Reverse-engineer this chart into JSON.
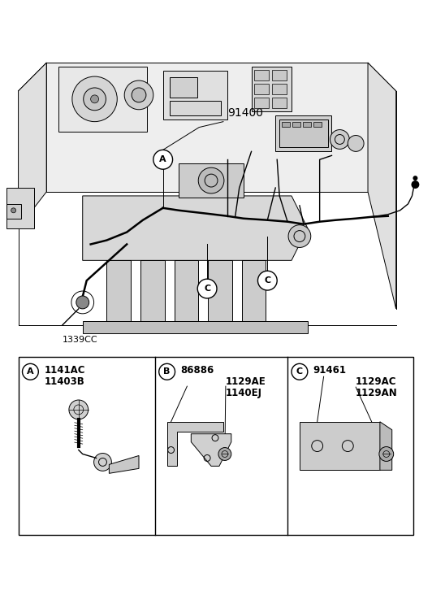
{
  "bg_color": "#ffffff",
  "line_color": "#000000",
  "fig_width": 5.32,
  "fig_height": 7.27,
  "dpi": 100,
  "main_label": "91400",
  "part_label_1339CC": "1339CC",
  "panel_A": {
    "circle_label": "A",
    "label1": "1141AC",
    "label2": "11403B"
  },
  "panel_B": {
    "circle_label": "B",
    "label1": "86886",
    "label2": "1129AE",
    "label3": "1140EJ"
  },
  "panel_C": {
    "circle_label": "C",
    "label1": "91461",
    "label2": "1129AC",
    "label3": "1129AN"
  }
}
